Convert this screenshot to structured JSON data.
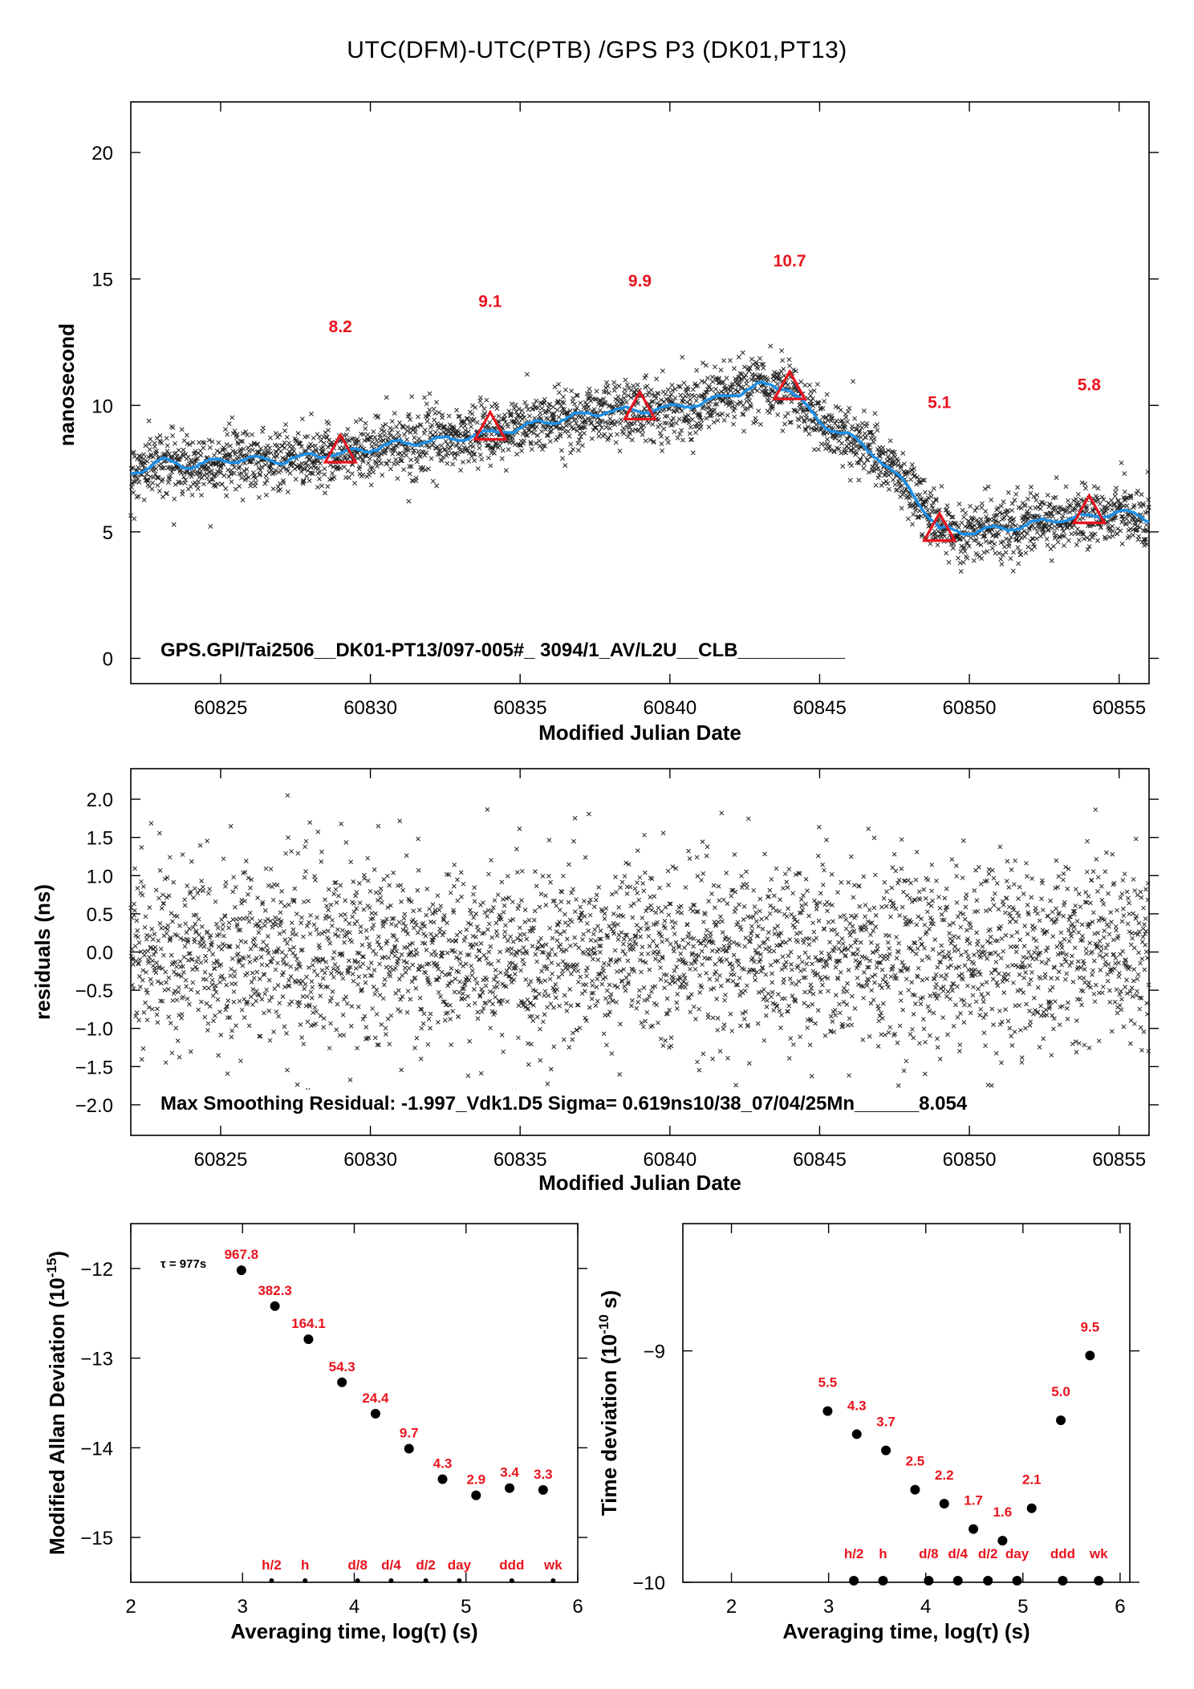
{
  "title": "UTC(DFM)-UTC(PTB)  /GPS  P3  (DK01,PT13)",
  "chart_data": [
    {
      "id": "top",
      "type": "scatter",
      "xlabel": "Modified Julian Date",
      "ylabel": "nanosecond",
      "xlim": [
        60822,
        60856
      ],
      "ylim": [
        -1,
        22
      ],
      "xticks": [
        60825,
        60830,
        60835,
        60840,
        60845,
        60850,
        60855
      ],
      "xtick_labels": [
        "60825",
        "60830",
        "60835",
        "60840",
        "60845",
        "60850",
        "60855"
      ],
      "yticks": [
        0,
        5,
        10,
        15,
        20
      ],
      "ytick_labels": [
        "0",
        "5",
        "10",
        "15",
        "20"
      ],
      "annotation": "GPS.GPI/Tai2506__DK01-PT13/097-005#_  3094/1_AV/L2U__CLB__________",
      "smoothed_curve": {
        "color": "#1e90e6",
        "x": [
          60822,
          60823,
          60824,
          60825,
          60826,
          60827,
          60828,
          60829,
          60830,
          60831,
          60832,
          60833,
          60834,
          60835,
          60836,
          60837,
          60838,
          60839,
          60840,
          60841,
          60842,
          60843,
          60844,
          60845,
          60846,
          60847,
          60848,
          60849,
          60850,
          60851,
          60852,
          60853,
          60854,
          60855,
          60856
        ],
        "y": [
          7.3,
          7.8,
          7.6,
          7.8,
          7.9,
          7.8,
          8.0,
          8.1,
          8.3,
          8.5,
          8.6,
          8.7,
          8.9,
          9.1,
          9.4,
          9.6,
          9.8,
          9.8,
          9.9,
          10.1,
          10.4,
          10.8,
          10.7,
          9.3,
          8.8,
          7.9,
          6.7,
          5.1,
          5.0,
          5.1,
          5.3,
          5.5,
          5.6,
          5.8,
          5.5
        ]
      },
      "markers": [
        {
          "x": 60829,
          "y": 8.2,
          "label": "8.2"
        },
        {
          "x": 60834,
          "y": 9.1,
          "label": "9.1"
        },
        {
          "x": 60839,
          "y": 9.9,
          "label": "9.9"
        },
        {
          "x": 60844,
          "y": 10.7,
          "label": "10.7"
        },
        {
          "x": 60849,
          "y": 5.1,
          "label": "5.1"
        },
        {
          "x": 60854,
          "y": 5.8,
          "label": "5.8"
        }
      ],
      "marker_label_y": [
        12.9,
        13.9,
        14.7,
        15.5,
        9.9,
        10.6
      ],
      "marker_color": "#e8141e",
      "points_per_day": 90,
      "point_noise_ns": 0.6
    },
    {
      "id": "middle",
      "type": "scatter",
      "xlabel": "Modified Julian Date",
      "ylabel": "residuals (ns)",
      "xlim": [
        60822,
        60856
      ],
      "ylim": [
        -2.4,
        2.4
      ],
      "xticks": [
        60825,
        60830,
        60835,
        60840,
        60845,
        60850,
        60855
      ],
      "xtick_labels": [
        "60825",
        "60830",
        "60835",
        "60840",
        "60845",
        "60850",
        "60855"
      ],
      "yticks": [
        2.0,
        1.5,
        1.0,
        0.5,
        0.0,
        -0.5,
        -1.0,
        -1.5,
        -2.0
      ],
      "ytick_labels": [
        "2.0",
        "1.5",
        "1.0",
        "0.5",
        "0.0",
        "−0.5",
        "−1.0",
        "−1.5",
        "−2.0"
      ],
      "annotation": "Max Smoothing Residual: -1.997_Vdk1.D5  Sigma= 0.619ns10/38_07/04/25Mn______8.054",
      "sigma_ns": 0.619,
      "points_per_day": 90
    },
    {
      "id": "bottom-left",
      "type": "scatter",
      "xlabel": "Averaging time, log(τ) (s)",
      "ylabel": "Modified Allan Deviation (10",
      "ylabel_sup": "-15",
      "ylabel_end": ")",
      "xlim": [
        2,
        6
      ],
      "ylim": [
        -15.5,
        -11.5
      ],
      "xticks": [
        2,
        3,
        4,
        5,
        6
      ],
      "xtick_labels": [
        "2",
        "3",
        "4",
        "5",
        "6"
      ],
      "yticks": [
        -12,
        -13,
        -14,
        -15
      ],
      "ytick_labels": [
        "−12",
        "−13",
        "−14",
        "−15"
      ],
      "tau_note": "τ = 977s",
      "points": [
        {
          "x": 2.99,
          "y": -12.02,
          "label": "967.8"
        },
        {
          "x": 3.29,
          "y": -12.42,
          "label": "382.3"
        },
        {
          "x": 3.59,
          "y": -12.79,
          "label": "164.1"
        },
        {
          "x": 3.89,
          "y": -13.27,
          "label": "54.3"
        },
        {
          "x": 4.19,
          "y": -13.62,
          "label": "24.4"
        },
        {
          "x": 4.49,
          "y": -14.01,
          "label": "9.7"
        },
        {
          "x": 4.79,
          "y": -14.35,
          "label": "4.3"
        },
        {
          "x": 5.09,
          "y": -14.53,
          "label": "2.9"
        },
        {
          "x": 5.39,
          "y": -14.45,
          "label": "3.4"
        },
        {
          "x": 5.69,
          "y": -14.47,
          "label": "3.3"
        }
      ],
      "reference_marks": [
        {
          "x": 3.26,
          "label": "h/2"
        },
        {
          "x": 3.56,
          "label": "h"
        },
        {
          "x": 4.03,
          "label": "d/8"
        },
        {
          "x": 4.33,
          "label": "d/4"
        },
        {
          "x": 4.64,
          "label": "d/2"
        },
        {
          "x": 4.94,
          "label": "day"
        },
        {
          "x": 5.41,
          "label": "ddd"
        },
        {
          "x": 5.78,
          "label": "wk"
        }
      ]
    },
    {
      "id": "bottom-right",
      "type": "scatter",
      "xlabel": "Averaging time, log(τ) (s)",
      "ylabel": "Time deviation (10",
      "ylabel_sup": "-10",
      "ylabel_end": " s)",
      "xlim": [
        1.5,
        6.1
      ],
      "ylim": [
        -10,
        -8.45
      ],
      "xticks": [
        2,
        3,
        4,
        5,
        6
      ],
      "xtick_labels": [
        "2",
        "3",
        "4",
        "5",
        "6"
      ],
      "yticks": [
        -9,
        -10
      ],
      "ytick_labels": [
        "−9",
        "−10"
      ],
      "points": [
        {
          "x": 2.99,
          "y": -9.26,
          "label": "5.5"
        },
        {
          "x": 3.29,
          "y": -9.36,
          "label": "4.3"
        },
        {
          "x": 3.59,
          "y": -9.43,
          "label": "3.7"
        },
        {
          "x": 3.89,
          "y": -9.6,
          "label": "2.5"
        },
        {
          "x": 4.19,
          "y": -9.66,
          "label": "2.2"
        },
        {
          "x": 4.49,
          "y": -9.77,
          "label": "1.7"
        },
        {
          "x": 4.79,
          "y": -9.82,
          "label": "1.6"
        },
        {
          "x": 5.09,
          "y": -9.68,
          "label": "2.1"
        },
        {
          "x": 5.39,
          "y": -9.3,
          "label": "5.0"
        },
        {
          "x": 5.69,
          "y": -9.02,
          "label": "9.5"
        }
      ],
      "reference_marks": [
        {
          "x": 3.26,
          "label": "h/2"
        },
        {
          "x": 3.56,
          "label": "h"
        },
        {
          "x": 4.03,
          "label": "d/8"
        },
        {
          "x": 4.33,
          "label": "d/4"
        },
        {
          "x": 4.64,
          "label": "d/2"
        },
        {
          "x": 4.94,
          "label": "day"
        },
        {
          "x": 5.41,
          "label": "ddd"
        },
        {
          "x": 5.78,
          "label": "wk"
        }
      ]
    }
  ]
}
